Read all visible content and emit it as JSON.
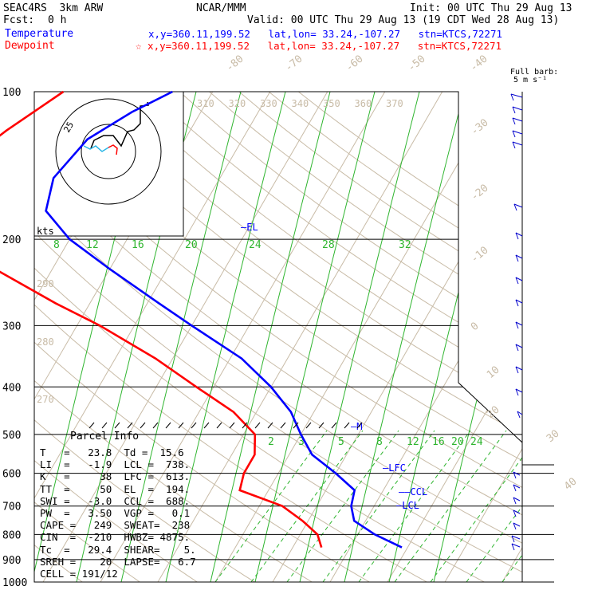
{
  "header": {
    "model": "SEAC4RS  3km ARW",
    "org": "NCAR/MMM",
    "init": "Init: 00 UTC Thu 29 Aug 13",
    "fcst_label": "Fcst:",
    "fcst_value": "0 h",
    "valid": "Valid: 00 UTC Thu 29 Aug 13 (19 CDT Wed 28 Aug 13)"
  },
  "legend": {
    "temperature_label": "Temperature",
    "temperature_info": "x,y=360.11,199.52   lat,lon= 33.24,-107.27   stn=KTCS,72271",
    "dewpoint_label": "Dewpoint",
    "dewpoint_info": "☆ x,y=360.11,199.52   lat,lon= 33.24,-107.27   stn=KTCS,72271",
    "temperature_color": "#0000ff",
    "dewpoint_color": "#ff0000"
  },
  "barb_legend": {
    "line1": "Full barb:",
    "line2": "5 m s⁻¹"
  },
  "hodograph": {
    "ring_label": "25",
    "units": "kts"
  },
  "parcel_info": {
    "title": "Parcel Info",
    "rows": [
      "T   =   23.8  Td =  15.6",
      "LI  =   -1.9  LCL =  738.",
      "K   =     38  LFC =  613.",
      "TT  =     50  EL  =  194.",
      "SWI =   -3.0  CCL =  688.",
      "PW  =   3.50  VGP =   0.1",
      "CAPE =   249  SWEAT=  238",
      "CIN  =  -210  HWBZ= 4875.",
      "Tc  =   29.4  SHEAR=    5.",
      "SREH =    20  LAPSE=   6.7",
      "CELL = 191/12"
    ]
  },
  "chart_data": {
    "type": "line",
    "diagram": "Skew-T log-P",
    "y_axis": {
      "scale": "log",
      "ylim": [
        1000,
        100
      ],
      "ticks": [
        100,
        200,
        300,
        400,
        500,
        600,
        700,
        800,
        900,
        1000
      ]
    },
    "isotherm_labels": [
      "-80",
      "-70",
      "-60",
      "-50",
      "-40",
      "-30",
      "-20",
      "-10",
      "0",
      "10",
      "20",
      "30",
      "40"
    ],
    "theta_labels_top": [
      "310",
      "320",
      "330",
      "340",
      "350",
      "360",
      "370"
    ],
    "theta_labels_left": [
      "290",
      "280",
      "270"
    ],
    "mixing_ratio_labels_upper": [
      "8",
      "12",
      "16",
      "20",
      "24",
      "28",
      "32"
    ],
    "mixing_ratio_labels_lower": [
      "2",
      "3",
      "5",
      "8",
      "12",
      "16",
      "20",
      "24"
    ],
    "series": [
      {
        "name": "Temperature",
        "color": "#0000ff",
        "points": [
          [
            100,
            -57
          ],
          [
            110,
            -62
          ],
          [
            125,
            -67
          ],
          [
            150,
            -69
          ],
          [
            175,
            -67
          ],
          [
            200,
            -60
          ],
          [
            230,
            -50
          ],
          [
            270,
            -38
          ],
          [
            300,
            -30
          ],
          [
            350,
            -18
          ],
          [
            400,
            -10
          ],
          [
            450,
            -4
          ],
          [
            500,
            0
          ],
          [
            550,
            4
          ],
          [
            600,
            10
          ],
          [
            650,
            15
          ],
          [
            700,
            16
          ],
          [
            750,
            18
          ],
          [
            800,
            23
          ],
          [
            850,
            29
          ]
        ]
      },
      {
        "name": "Dewpoint",
        "color": "#ff0000",
        "points": [
          [
            100,
            -76
          ],
          [
            120,
            -82
          ],
          [
            150,
            -88
          ],
          [
            175,
            -90
          ],
          [
            200,
            -84
          ],
          [
            230,
            -70
          ],
          [
            270,
            -56
          ],
          [
            300,
            -46
          ],
          [
            350,
            -33
          ],
          [
            400,
            -23
          ],
          [
            450,
            -14
          ],
          [
            500,
            -8
          ],
          [
            550,
            -6
          ],
          [
            600,
            -6
          ],
          [
            650,
            -5
          ],
          [
            700,
            4
          ],
          [
            750,
            9
          ],
          [
            800,
            13
          ],
          [
            850,
            15
          ]
        ]
      }
    ],
    "levels": [
      {
        "label": "EL",
        "p": 194
      },
      {
        "label": "LFC",
        "p": 613
      },
      {
        "label": "CCL",
        "p": 688
      },
      {
        "label": "LCL",
        "p": 738
      },
      {
        "label": "M",
        "p": 500
      }
    ],
    "wind_profile_note": "wind barbs along right margin"
  }
}
